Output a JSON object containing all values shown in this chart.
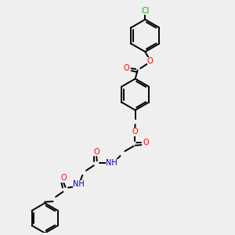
{
  "bg_color": "#efefef",
  "bond_color": "#000000",
  "atom_colors": {
    "O": "#ff0000",
    "N": "#0000bb",
    "Cl": "#00bb00",
    "C": "#000000"
  },
  "figsize": [
    3.0,
    3.0
  ],
  "dpi": 100,
  "bond_lw": 1.4,
  "font_size": 7.0
}
